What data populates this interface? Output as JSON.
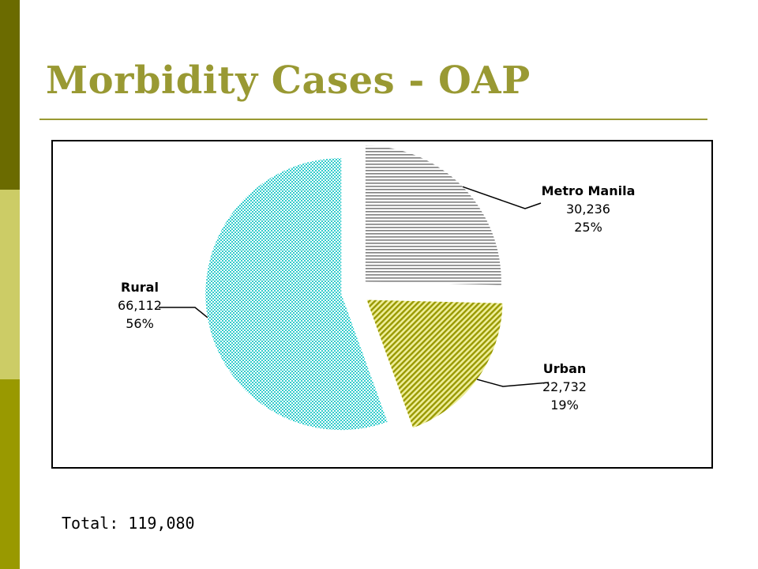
{
  "slide": {
    "title": "Morbidity Cases - OAP",
    "total_text": "Total: 119,080"
  },
  "colors": {
    "sidebar_top": "#6b6b00",
    "sidebar_middle": "#cccc66",
    "sidebar_bottom": "#999900",
    "title": "#999933",
    "rural": "#33cccc",
    "metro_manila": "#808080",
    "urban": "#999900"
  },
  "chart_data": {
    "type": "pie",
    "title": "",
    "legend": "none",
    "slices": [
      {
        "label": "Metro Manila",
        "value": 30236,
        "value_label": "30,236",
        "percent_label": "25%",
        "exploded": true
      },
      {
        "label": "Urban",
        "value": 22732,
        "value_label": "22,732",
        "percent_label": "19%",
        "exploded": true
      },
      {
        "label": "Rural",
        "value": 66112,
        "value_label": "66,112",
        "percent_label": "56%",
        "exploded": true
      }
    ]
  }
}
